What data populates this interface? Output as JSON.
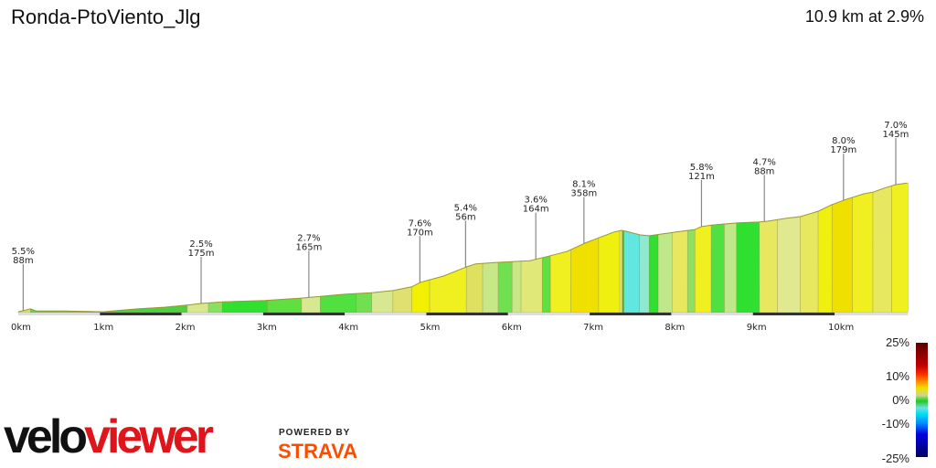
{
  "header": {
    "title": "Ronda-PtoViento_Jlg",
    "summary": "10.9 km at 2.9%"
  },
  "chart_data": {
    "type": "area",
    "xlabel": "",
    "ylabel": "",
    "xlim": [
      0,
      10.9
    ],
    "x_tick_labels": [
      "0km",
      "1km",
      "2km",
      "3km",
      "4km",
      "5km",
      "6km",
      "7km",
      "8km",
      "9km",
      "10km"
    ],
    "profile": [
      [
        0,
        2
      ],
      [
        0.15,
        9
      ],
      [
        0.22,
        4
      ],
      [
        0.59,
        4
      ],
      [
        1.04,
        2
      ],
      [
        1.46,
        9
      ],
      [
        1.79,
        13
      ],
      [
        2.07,
        18
      ],
      [
        2.24,
        22
      ],
      [
        2.5,
        26
      ],
      [
        3.02,
        29
      ],
      [
        3.47,
        35
      ],
      [
        3.58,
        37
      ],
      [
        3.98,
        44
      ],
      [
        4.33,
        48
      ],
      [
        4.59,
        53
      ],
      [
        4.82,
        62
      ],
      [
        4.93,
        73
      ],
      [
        5.21,
        88
      ],
      [
        5.49,
        110
      ],
      [
        5.6,
        117
      ],
      [
        5.88,
        121
      ],
      [
        6.27,
        125
      ],
      [
        6.5,
        136
      ],
      [
        6.72,
        147
      ],
      [
        6.94,
        167
      ],
      [
        7.11,
        180
      ],
      [
        7.3,
        194
      ],
      [
        7.39,
        198
      ],
      [
        7.44,
        196
      ],
      [
        7.62,
        187
      ],
      [
        7.73,
        185
      ],
      [
        8.06,
        194
      ],
      [
        8.29,
        200
      ],
      [
        8.37,
        207
      ],
      [
        8.51,
        211
      ],
      [
        8.62,
        213
      ],
      [
        8.82,
        216
      ],
      [
        9.07,
        218
      ],
      [
        9.18,
        220
      ],
      [
        9.41,
        227
      ],
      [
        9.58,
        231
      ],
      [
        9.8,
        244
      ],
      [
        9.97,
        260
      ],
      [
        10.12,
        271
      ],
      [
        10.36,
        286
      ],
      [
        10.47,
        290
      ],
      [
        10.63,
        301
      ],
      [
        10.75,
        308
      ],
      [
        10.89,
        312
      ]
    ],
    "gradient_segments": [
      [
        0,
        0.15,
        "#e0e060"
      ],
      [
        0.15,
        1.04,
        "#60d060"
      ],
      [
        1.04,
        2.07,
        "#50d040"
      ],
      [
        2.07,
        2.33,
        "#d8e890"
      ],
      [
        2.33,
        2.5,
        "#88e060"
      ],
      [
        2.5,
        3.05,
        "#30e030"
      ],
      [
        3.05,
        3.47,
        "#60e040"
      ],
      [
        3.47,
        3.7,
        "#d8e890"
      ],
      [
        3.7,
        4.14,
        "#50e040"
      ],
      [
        4.14,
        4.33,
        "#70e050"
      ],
      [
        4.33,
        4.59,
        "#d8e890"
      ],
      [
        4.59,
        4.82,
        "#e0e070"
      ],
      [
        4.82,
        5.04,
        "#f0f000"
      ],
      [
        5.04,
        5.49,
        "#f0f020"
      ],
      [
        5.49,
        5.69,
        "#e0e060"
      ],
      [
        5.69,
        5.88,
        "#c8e888"
      ],
      [
        5.88,
        6.05,
        "#70e050"
      ],
      [
        6.05,
        6.16,
        "#c8e888"
      ],
      [
        6.16,
        6.42,
        "#e0e878"
      ],
      [
        6.42,
        6.52,
        "#60e040"
      ],
      [
        6.52,
        6.77,
        "#f0f020"
      ],
      [
        6.77,
        7.11,
        "#f0e000"
      ],
      [
        7.11,
        7.37,
        "#f0f010"
      ],
      [
        7.37,
        7.4,
        "#e8e860"
      ],
      [
        7.4,
        7.42,
        "#20d020"
      ],
      [
        7.42,
        7.61,
        "#60e8e0"
      ],
      [
        7.61,
        7.73,
        "#90e8d0"
      ],
      [
        7.73,
        7.84,
        "#30e030"
      ],
      [
        7.84,
        8.01,
        "#c0e888"
      ],
      [
        8.01,
        8.2,
        "#e8e860"
      ],
      [
        8.2,
        8.29,
        "#90e060"
      ],
      [
        8.29,
        8.49,
        "#f0f020"
      ],
      [
        8.49,
        8.65,
        "#50e040"
      ],
      [
        8.65,
        8.8,
        "#c0e888"
      ],
      [
        8.8,
        9.08,
        "#30e030"
      ],
      [
        9.08,
        9.3,
        "#e8e860"
      ],
      [
        9.3,
        9.58,
        "#e0e890"
      ],
      [
        9.58,
        9.8,
        "#e8e860"
      ],
      [
        9.8,
        9.97,
        "#f0f010"
      ],
      [
        9.97,
        10.22,
        "#f0e000"
      ],
      [
        10.22,
        10.47,
        "#f0f020"
      ],
      [
        10.47,
        10.7,
        "#e8e860"
      ],
      [
        10.7,
        10.9,
        "#f0f020"
      ]
    ],
    "annotations": [
      {
        "km": 0.06,
        "grade": "5.5%",
        "length": "88m"
      },
      {
        "km": 2.24,
        "grade": "2.5%",
        "length": "175m"
      },
      {
        "km": 3.56,
        "grade": "2.7%",
        "length": "165m"
      },
      {
        "km": 4.92,
        "grade": "7.6%",
        "length": "170m"
      },
      {
        "km": 5.48,
        "grade": "5.4%",
        "length": "56m"
      },
      {
        "km": 6.34,
        "grade": "3.6%",
        "length": "164m"
      },
      {
        "km": 6.93,
        "grade": "8.1%",
        "length": "358m"
      },
      {
        "km": 8.37,
        "grade": "5.8%",
        "length": "121m"
      },
      {
        "km": 9.14,
        "grade": "4.7%",
        "length": "88m"
      },
      {
        "km": 10.11,
        "grade": "8.0%",
        "length": "179m"
      },
      {
        "km": 10.75,
        "grade": "7.0%",
        "length": "145m"
      }
    ]
  },
  "legend": {
    "labels": [
      "25%",
      "10%",
      "0%",
      "-10%",
      "-25%"
    ]
  },
  "branding": {
    "logo_part1": "velo",
    "logo_part2": "viewer",
    "powered_by": "POWERED BY",
    "strava": "STRAVA"
  }
}
